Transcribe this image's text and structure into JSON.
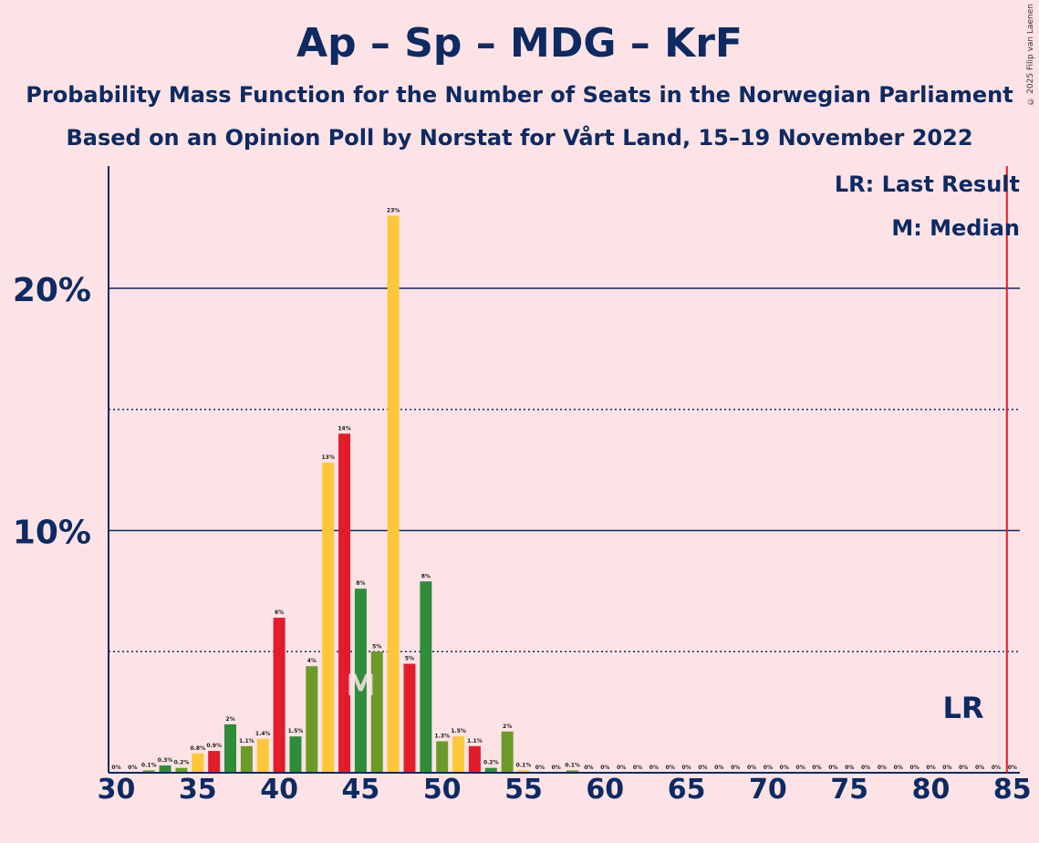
{
  "title": "Ap – Sp – MDG – KrF",
  "subtitle1": "Probability Mass Function for the Number of Seats in the Norwegian Parliament",
  "subtitle2": "Based on an Opinion Poll by Norstat for Vårt Land, 15–19 November 2022",
  "copyright": "© 2025 Filip van Laenen",
  "legend": {
    "lr": "LR: Last Result",
    "median": "M: Median"
  },
  "markers": {
    "median_label": "M",
    "median_seat": 45,
    "lr_label": "LR",
    "last_result_seat": 85
  },
  "colors": {
    "background": "#fde3e6",
    "text": "#0d2a63",
    "Ap": "#e31c2c",
    "Sp": "#6b9a2b",
    "MDG": "#2f8c3b",
    "KrF": "#fdc73a",
    "last_result_line": "#e31c2c"
  },
  "chart_data": {
    "type": "bar",
    "xlim": [
      30,
      85
    ],
    "ylim": [
      0,
      25
    ],
    "y_ticks": [
      {
        "value": 10,
        "label": "10%"
      },
      {
        "value": 20,
        "label": "20%"
      }
    ],
    "y_minor_ticks": [
      5,
      15
    ],
    "x_ticks": [
      30,
      35,
      40,
      45,
      50,
      55,
      60,
      65,
      70,
      75,
      80,
      85
    ],
    "bars": [
      {
        "seat": 30,
        "value": 0,
        "label": "0%",
        "party": "KrF"
      },
      {
        "seat": 31,
        "value": 0,
        "label": "0%",
        "party": "MDG"
      },
      {
        "seat": 32,
        "value": 0.1,
        "label": "0.1%",
        "party": "Sp"
      },
      {
        "seat": 33,
        "value": 0.3,
        "label": "0.3%",
        "party": "MDG"
      },
      {
        "seat": 34,
        "value": 0.2,
        "label": "0.2%",
        "party": "Sp"
      },
      {
        "seat": 35,
        "value": 0.8,
        "label": "0.8%",
        "party": "KrF"
      },
      {
        "seat": 36,
        "value": 0.9,
        "label": "0.9%",
        "party": "Ap"
      },
      {
        "seat": 37,
        "value": 2.0,
        "label": "2%",
        "party": "MDG"
      },
      {
        "seat": 38,
        "value": 1.1,
        "label": "1.1%",
        "party": "Sp"
      },
      {
        "seat": 39,
        "value": 1.4,
        "label": "1.4%",
        "party": "KrF"
      },
      {
        "seat": 40,
        "value": 6.4,
        "label": "6%",
        "party": "Ap"
      },
      {
        "seat": 41,
        "value": 1.5,
        "label": "1.5%",
        "party": "MDG"
      },
      {
        "seat": 42,
        "value": 4.4,
        "label": "4%",
        "party": "Sp"
      },
      {
        "seat": 43,
        "value": 12.8,
        "label": "13%",
        "party": "KrF"
      },
      {
        "seat": 44,
        "value": 14.0,
        "label": "14%",
        "party": "Ap"
      },
      {
        "seat": 45,
        "value": 7.6,
        "label": "8%",
        "party": "MDG"
      },
      {
        "seat": 46,
        "value": 5.0,
        "label": "5%",
        "party": "Sp"
      },
      {
        "seat": 47,
        "value": 23.0,
        "label": "23%",
        "party": "KrF"
      },
      {
        "seat": 48,
        "value": 4.5,
        "label": "5%",
        "party": "Ap"
      },
      {
        "seat": 49,
        "value": 7.9,
        "label": "8%",
        "party": "MDG"
      },
      {
        "seat": 50,
        "value": 1.3,
        "label": "1.3%",
        "party": "Sp"
      },
      {
        "seat": 51,
        "value": 1.5,
        "label": "1.5%",
        "party": "KrF"
      },
      {
        "seat": 52,
        "value": 1.1,
        "label": "1.1%",
        "party": "Ap"
      },
      {
        "seat": 53,
        "value": 0.2,
        "label": "0.2%",
        "party": "MDG"
      },
      {
        "seat": 54,
        "value": 1.7,
        "label": "2%",
        "party": "Sp"
      },
      {
        "seat": 55,
        "value": 0.1,
        "label": "0.1%",
        "party": "KrF"
      },
      {
        "seat": 56,
        "value": 0,
        "label": "0%",
        "party": "Ap"
      },
      {
        "seat": 57,
        "value": 0,
        "label": "0%",
        "party": "MDG"
      },
      {
        "seat": 58,
        "value": 0.1,
        "label": "0.1%",
        "party": "Sp"
      },
      {
        "seat": 59,
        "value": 0,
        "label": "0%",
        "party": "KrF"
      },
      {
        "seat": 60,
        "value": 0,
        "label": "0%",
        "party": "Ap"
      },
      {
        "seat": 61,
        "value": 0,
        "label": "0%",
        "party": "MDG"
      },
      {
        "seat": 62,
        "value": 0,
        "label": "0%",
        "party": "Sp"
      },
      {
        "seat": 63,
        "value": 0,
        "label": "0%",
        "party": "KrF"
      },
      {
        "seat": 64,
        "value": 0,
        "label": "0%",
        "party": "Ap"
      },
      {
        "seat": 65,
        "value": 0,
        "label": "0%",
        "party": "MDG"
      },
      {
        "seat": 66,
        "value": 0,
        "label": "0%",
        "party": "Sp"
      },
      {
        "seat": 67,
        "value": 0,
        "label": "0%",
        "party": "KrF"
      },
      {
        "seat": 68,
        "value": 0,
        "label": "0%",
        "party": "Ap"
      },
      {
        "seat": 69,
        "value": 0,
        "label": "0%",
        "party": "MDG"
      },
      {
        "seat": 70,
        "value": 0,
        "label": "0%",
        "party": "Sp"
      },
      {
        "seat": 71,
        "value": 0,
        "label": "0%",
        "party": "KrF"
      },
      {
        "seat": 72,
        "value": 0,
        "label": "0%",
        "party": "Ap"
      },
      {
        "seat": 73,
        "value": 0,
        "label": "0%",
        "party": "MDG"
      },
      {
        "seat": 74,
        "value": 0,
        "label": "0%",
        "party": "Sp"
      },
      {
        "seat": 75,
        "value": 0,
        "label": "0%",
        "party": "KrF"
      },
      {
        "seat": 76,
        "value": 0,
        "label": "0%",
        "party": "Ap"
      },
      {
        "seat": 77,
        "value": 0,
        "label": "0%",
        "party": "MDG"
      },
      {
        "seat": 78,
        "value": 0,
        "label": "0%",
        "party": "Sp"
      },
      {
        "seat": 79,
        "value": 0,
        "label": "0%",
        "party": "KrF"
      },
      {
        "seat": 80,
        "value": 0,
        "label": "0%",
        "party": "Ap"
      },
      {
        "seat": 81,
        "value": 0,
        "label": "0%",
        "party": "MDG"
      },
      {
        "seat": 82,
        "value": 0,
        "label": "0%",
        "party": "Sp"
      },
      {
        "seat": 83,
        "value": 0,
        "label": "0%",
        "party": "KrF"
      },
      {
        "seat": 84,
        "value": 0,
        "label": "0%",
        "party": "Ap"
      },
      {
        "seat": 85,
        "value": 0,
        "label": "0%",
        "party": "MDG"
      }
    ]
  }
}
